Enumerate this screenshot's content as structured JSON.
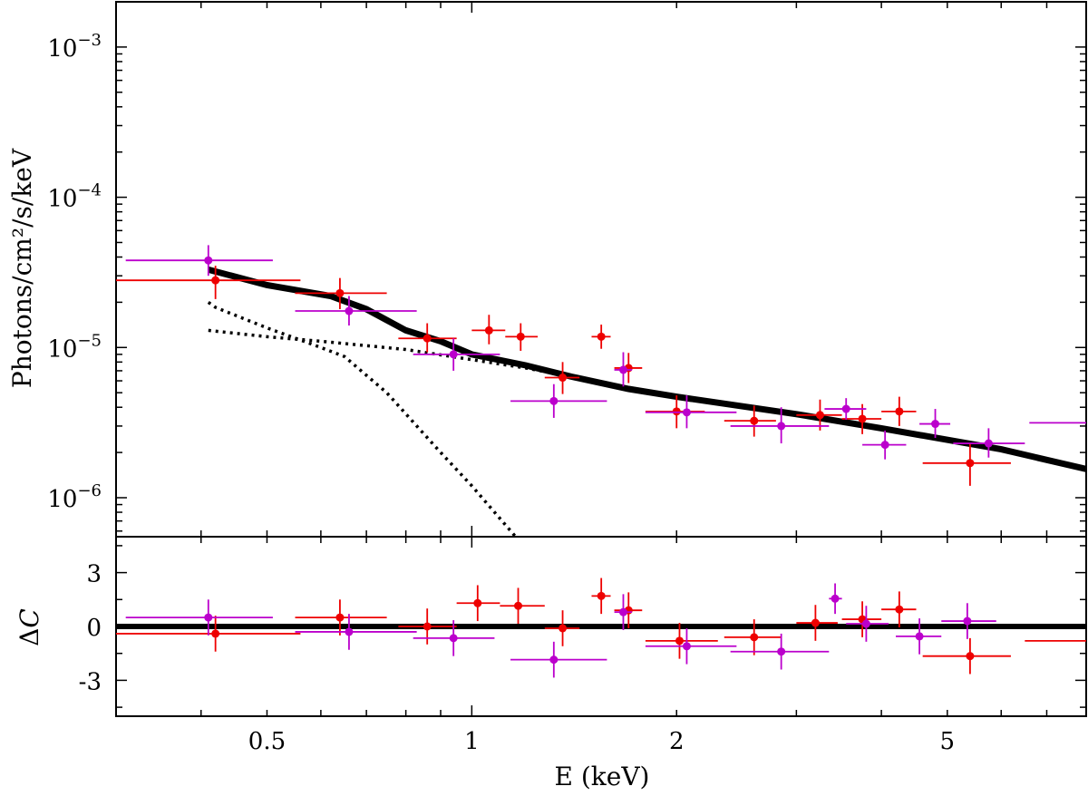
{
  "chart_data": [
    {
      "type": "scatter",
      "panel": "spectrum",
      "xscale": "log",
      "yscale": "log",
      "xlim": [
        0.3,
        8.0
      ],
      "ylim": [
        5.5e-07,
        0.002
      ],
      "ylabel": "Photons/cm²/s/keV",
      "ytick_values": [
        1e-06,
        1e-05,
        0.0001,
        0.001
      ],
      "ytick_labels": [
        {
          "base": "10",
          "exp": "−6"
        },
        {
          "base": "10",
          "exp": "−5"
        },
        {
          "base": "10",
          "exp": "−4"
        },
        {
          "base": "10",
          "exp": "−3"
        }
      ],
      "colors": {
        "series_red": "#ee0000",
        "series_magenta": "#bb00cc",
        "model": "#000000"
      },
      "series": [
        {
          "points": [
            {
              "x": 0.42,
              "xlo": 0.3,
              "xhi": 0.56,
              "y": 2.8e-05,
              "ylo": 2.1e-05,
              "yhi": 3.5e-05
            },
            {
              "x": 0.64,
              "xlo": 0.55,
              "xhi": 0.75,
              "y": 2.3e-05,
              "ylo": 1.8e-05,
              "yhi": 2.9e-05
            },
            {
              "x": 0.86,
              "xlo": 0.78,
              "xhi": 0.95,
              "y": 1.15e-05,
              "ylo": 9.3e-06,
              "yhi": 1.45e-05
            },
            {
              "x": 1.06,
              "xlo": 1.0,
              "xhi": 1.12,
              "y": 1.3e-05,
              "ylo": 1.05e-05,
              "yhi": 1.65e-05
            },
            {
              "x": 1.18,
              "xlo": 1.12,
              "xhi": 1.25,
              "y": 1.18e-05,
              "ylo": 9.5e-06,
              "yhi": 1.45e-05
            },
            {
              "x": 1.36,
              "xlo": 1.28,
              "xhi": 1.44,
              "y": 6.3e-06,
              "ylo": 4.9e-06,
              "yhi": 8e-06
            },
            {
              "x": 1.55,
              "xlo": 1.5,
              "xhi": 1.6,
              "y": 1.18e-05,
              "ylo": 9.8e-06,
              "yhi": 1.42e-05
            },
            {
              "x": 1.7,
              "xlo": 1.62,
              "xhi": 1.78,
              "y": 7.3e-06,
              "ylo": 5.8e-06,
              "yhi": 9.2e-06
            },
            {
              "x": 2.0,
              "xlo": 1.8,
              "xhi": 2.2,
              "y": 3.75e-06,
              "ylo": 2.9e-06,
              "yhi": 4.8e-06
            },
            {
              "x": 2.6,
              "xlo": 2.35,
              "xhi": 2.8,
              "y": 3.25e-06,
              "ylo": 2.55e-06,
              "yhi": 4.1e-06
            },
            {
              "x": 3.25,
              "xlo": 3.0,
              "xhi": 3.5,
              "y": 3.55e-06,
              "ylo": 2.8e-06,
              "yhi": 4.5e-06
            },
            {
              "x": 3.75,
              "xlo": 3.5,
              "xhi": 4.0,
              "y": 3.35e-06,
              "ylo": 2.65e-06,
              "yhi": 4.2e-06
            },
            {
              "x": 4.25,
              "xlo": 4.0,
              "xhi": 4.5,
              "y": 3.75e-06,
              "ylo": 3e-06,
              "yhi": 4.7e-06
            },
            {
              "x": 5.4,
              "xlo": 4.6,
              "xhi": 6.2,
              "y": 1.7e-06,
              "ylo": 1.2e-06,
              "yhi": 2.3e-06
            }
          ]
        },
        {
          "points": [
            {
              "x": 0.41,
              "xlo": 0.31,
              "xhi": 0.51,
              "y": 3.8e-05,
              "ylo": 3e-05,
              "yhi": 4.8e-05
            },
            {
              "x": 0.66,
              "xlo": 0.55,
              "xhi": 0.83,
              "y": 1.75e-05,
              "ylo": 1.4e-05,
              "yhi": 2.2e-05
            },
            {
              "x": 0.94,
              "xlo": 0.82,
              "xhi": 1.1,
              "y": 9e-06,
              "ylo": 7e-06,
              "yhi": 1.15e-05
            },
            {
              "x": 1.32,
              "xlo": 1.14,
              "xhi": 1.58,
              "y": 4.4e-06,
              "ylo": 3.4e-06,
              "yhi": 5.7e-06
            },
            {
              "x": 1.67,
              "xlo": 1.62,
              "xhi": 1.72,
              "y": 7.1e-06,
              "ylo": 5.5e-06,
              "yhi": 9.3e-06
            },
            {
              "x": 2.07,
              "xlo": 1.8,
              "xhi": 2.45,
              "y": 3.7e-06,
              "ylo": 2.9e-06,
              "yhi": 4.8e-06
            },
            {
              "x": 2.85,
              "xlo": 2.4,
              "xhi": 3.35,
              "y": 3e-06,
              "ylo": 2.3e-06,
              "yhi": 4e-06
            },
            {
              "x": 3.55,
              "xlo": 3.3,
              "xhi": 3.8,
              "y": 3.9e-06,
              "ylo": 3.3e-06,
              "yhi": 4.6e-06
            },
            {
              "x": 4.05,
              "xlo": 3.75,
              "xhi": 4.35,
              "y": 2.25e-06,
              "ylo": 1.8e-06,
              "yhi": 2.8e-06
            },
            {
              "x": 4.8,
              "xlo": 4.55,
              "xhi": 5.05,
              "y": 3.1e-06,
              "ylo": 2.5e-06,
              "yhi": 3.9e-06
            },
            {
              "x": 5.75,
              "xlo": 5.1,
              "xhi": 6.5,
              "y": 2.3e-06,
              "ylo": 1.85e-06,
              "yhi": 2.9e-06
            },
            {
              "x": 7.4,
              "xlo": 6.6,
              "xhi": 8.0,
              "y": 3.15e-06,
              "ylo": 3.15e-06,
              "yhi": 3.15e-06
            }
          ]
        }
      ],
      "model_lines": [
        {
          "style": "solid",
          "points": [
            [
              0.41,
              3.3e-05
            ],
            [
              0.5,
              2.6e-05
            ],
            [
              0.62,
              2.2e-05
            ],
            [
              0.7,
              1.8e-05
            ],
            [
              0.8,
              1.3e-05
            ],
            [
              0.9,
              1.1e-05
            ],
            [
              1.0,
              9e-06
            ],
            [
              1.2,
              7.6e-06
            ],
            [
              1.4,
              6.4e-06
            ],
            [
              1.7,
              5.3e-06
            ],
            [
              2.0,
              4.7e-06
            ],
            [
              3.0,
              3.6e-06
            ],
            [
              4.0,
              2.9e-06
            ],
            [
              6.0,
              2.1e-06
            ],
            [
              8.0,
              1.55e-06
            ]
          ]
        },
        {
          "style": "dotted",
          "points": [
            [
              0.41,
              2e-05
            ],
            [
              0.42,
              1.85e-05
            ],
            [
              0.5,
              1.35e-05
            ],
            [
              0.6,
              1e-05
            ],
            [
              0.65,
              8.7e-06
            ],
            [
              0.75,
              5e-06
            ],
            [
              0.9,
              2e-06
            ],
            [
              1.0,
              1.2e-06
            ],
            [
              1.16,
              5.5e-07
            ]
          ]
        },
        {
          "style": "dotted",
          "points": [
            [
              0.41,
              1.3e-05
            ],
            [
              0.5,
              1.18e-05
            ],
            [
              0.6,
              1.1e-05
            ],
            [
              0.8,
              9.7e-06
            ],
            [
              1.0,
              8.3e-06
            ],
            [
              1.2,
              7.3e-06
            ],
            [
              1.35,
              6.6e-06
            ]
          ]
        }
      ]
    },
    {
      "type": "scatter",
      "panel": "residuals",
      "xscale": "log",
      "xlim": [
        0.3,
        8.0
      ],
      "ylim": [
        -5,
        5
      ],
      "xlabel": "E (keV)",
      "ylabel_main": "Δ",
      "ylabel_var": "C",
      "ytick_values": [
        -3,
        0,
        3
      ],
      "ytick_labels": [
        "-3",
        "0",
        "3"
      ],
      "xtick_values": [
        0.5,
        1,
        2,
        5
      ],
      "xtick_labels": [
        "0.5",
        "1",
        "2",
        "5"
      ],
      "zero_line": 0,
      "series": [
        {
          "points": [
            {
              "x": 0.42,
              "xlo": 0.3,
              "xhi": 0.56,
              "y": -0.4,
              "ylo": -1.4,
              "yhi": 0.6
            },
            {
              "x": 0.64,
              "xlo": 0.55,
              "xhi": 0.75,
              "y": 0.5,
              "ylo": -0.5,
              "yhi": 1.5
            },
            {
              "x": 0.86,
              "xlo": 0.78,
              "xhi": 0.95,
              "y": 0.0,
              "ylo": -1.0,
              "yhi": 1.0
            },
            {
              "x": 1.02,
              "xlo": 0.95,
              "xhi": 1.1,
              "y": 1.3,
              "ylo": 0.3,
              "yhi": 2.3
            },
            {
              "x": 1.17,
              "xlo": 1.1,
              "xhi": 1.28,
              "y": 1.15,
              "ylo": 0.15,
              "yhi": 2.15
            },
            {
              "x": 1.36,
              "xlo": 1.28,
              "xhi": 1.44,
              "y": -0.1,
              "ylo": -1.1,
              "yhi": 0.9
            },
            {
              "x": 1.55,
              "xlo": 1.5,
              "xhi": 1.6,
              "y": 1.7,
              "ylo": 0.7,
              "yhi": 2.7
            },
            {
              "x": 1.7,
              "xlo": 1.62,
              "xhi": 1.78,
              "y": 0.9,
              "ylo": -0.1,
              "yhi": 1.9
            },
            {
              "x": 2.02,
              "xlo": 1.8,
              "xhi": 2.3,
              "y": -0.8,
              "ylo": -1.8,
              "yhi": 0.2
            },
            {
              "x": 2.6,
              "xlo": 2.35,
              "xhi": 2.85,
              "y": -0.6,
              "ylo": -1.6,
              "yhi": 0.4
            },
            {
              "x": 3.2,
              "xlo": 3.0,
              "xhi": 3.45,
              "y": 0.2,
              "ylo": -0.8,
              "yhi": 1.2
            },
            {
              "x": 3.75,
              "xlo": 3.5,
              "xhi": 4.0,
              "y": 0.4,
              "ylo": -0.6,
              "yhi": 1.4
            },
            {
              "x": 4.25,
              "xlo": 4.0,
              "xhi": 4.5,
              "y": 0.95,
              "ylo": -0.05,
              "yhi": 1.95
            },
            {
              "x": 5.4,
              "xlo": 4.6,
              "xhi": 6.2,
              "y": -1.65,
              "ylo": -2.65,
              "yhi": -0.65
            },
            {
              "x": 7.3,
              "xlo": 6.5,
              "xhi": 8.0,
              "y": -0.8,
              "ylo": -0.8,
              "yhi": -0.8
            }
          ]
        },
        {
          "points": [
            {
              "x": 0.41,
              "xlo": 0.31,
              "xhi": 0.51,
              "y": 0.5,
              "ylo": -0.5,
              "yhi": 1.5
            },
            {
              "x": 0.66,
              "xlo": 0.55,
              "xhi": 0.83,
              "y": -0.3,
              "ylo": -1.3,
              "yhi": 0.7
            },
            {
              "x": 0.94,
              "xlo": 0.82,
              "xhi": 1.08,
              "y": -0.65,
              "ylo": -1.65,
              "yhi": 0.35
            },
            {
              "x": 1.32,
              "xlo": 1.14,
              "xhi": 1.58,
              "y": -1.85,
              "ylo": -2.85,
              "yhi": -0.85
            },
            {
              "x": 1.67,
              "xlo": 1.62,
              "xhi": 1.72,
              "y": 0.8,
              "ylo": -0.2,
              "yhi": 1.8
            },
            {
              "x": 2.07,
              "xlo": 1.8,
              "xhi": 2.45,
              "y": -1.1,
              "ylo": -2.1,
              "yhi": -0.1
            },
            {
              "x": 2.85,
              "xlo": 2.4,
              "xhi": 3.35,
              "y": -1.4,
              "ylo": -2.4,
              "yhi": -0.4
            },
            {
              "x": 3.42,
              "xlo": 3.35,
              "xhi": 3.5,
              "y": 1.55,
              "ylo": 0.7,
              "yhi": 2.4
            },
            {
              "x": 3.8,
              "xlo": 3.55,
              "xhi": 4.1,
              "y": 0.15,
              "ylo": -0.85,
              "yhi": 1.15
            },
            {
              "x": 4.55,
              "xlo": 4.2,
              "xhi": 4.9,
              "y": -0.55,
              "ylo": -1.55,
              "yhi": 0.45
            },
            {
              "x": 5.35,
              "xlo": 4.9,
              "xhi": 5.9,
              "y": 0.3,
              "ylo": -0.7,
              "yhi": 1.3
            }
          ]
        }
      ]
    }
  ]
}
